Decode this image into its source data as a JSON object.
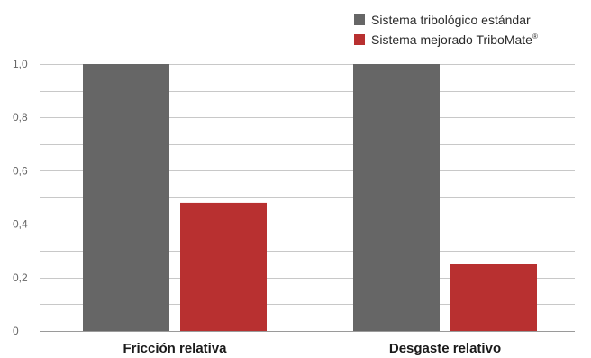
{
  "chart_data": {
    "type": "bar",
    "categories": [
      "Fricción relativa",
      "Desgaste relativo"
    ],
    "series": [
      {
        "name": "Sistema tribológico estándar",
        "values": [
          1.0,
          1.0
        ],
        "color": "#666666"
      },
      {
        "name": "Sistema mejorado TriboMate",
        "values": [
          0.48,
          0.25
        ],
        "color": "#b83030"
      }
    ],
    "legend_superscript": "®",
    "yticks": [
      "0",
      "0,2",
      "0,4",
      "0,6",
      "0,8",
      "1,0"
    ],
    "ylim": [
      0,
      1.0
    ],
    "grid": true,
    "legend_position": "top-right",
    "colors": {
      "gridline": "#c8c8c8",
      "tick_text": "#666666",
      "category_text": "#1a1a1a"
    }
  }
}
